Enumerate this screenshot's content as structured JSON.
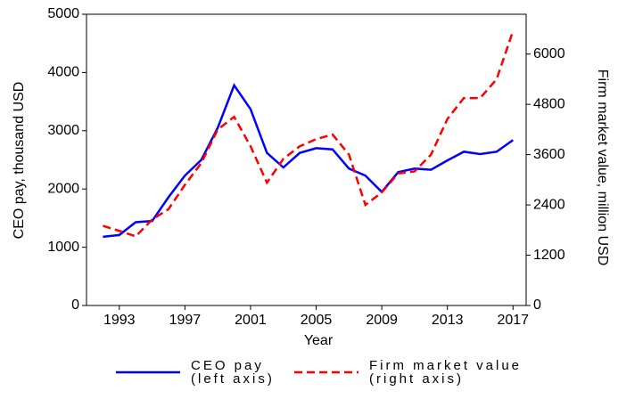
{
  "chart_data": {
    "type": "line",
    "x_label": "Year",
    "y_label": "CEO pay, thousand USD",
    "y2_label": "Firm market value, million USD",
    "x": [
      1992,
      1993,
      1994,
      1995,
      1996,
      1997,
      1998,
      1999,
      2000,
      2001,
      2002,
      2003,
      2004,
      2005,
      2006,
      2007,
      2008,
      2009,
      2010,
      2011,
      2012,
      2013,
      2014,
      2015,
      2016,
      2017
    ],
    "xlim": [
      1991,
      2017.8
    ],
    "xticks": [
      1993,
      1997,
      2001,
      2005,
      2009,
      2013,
      2017
    ],
    "ylim": [
      0,
      5000
    ],
    "yticks": [
      0,
      1000,
      2000,
      3000,
      4000,
      5000
    ],
    "y2lim": [
      0,
      6950
    ],
    "y2ticks": [
      0,
      1200,
      2400,
      3600,
      4800,
      6000
    ],
    "series": [
      {
        "name": "CEO pay\n(left axis)",
        "color": "#0000ff",
        "dash": "solid",
        "values": [
          1180,
          1210,
          1430,
          1450,
          1860,
          2230,
          2500,
          3050,
          3780,
          3370,
          2620,
          2370,
          2620,
          2700,
          2680,
          2350,
          2230,
          1950,
          2290,
          2350,
          2330,
          2490,
          2640,
          2600,
          2640,
          2840
        ]
      },
      {
        "name": "Firm market value\n(right axis)",
        "color": "#ff0000",
        "dash": "dashed",
        "axis": "y2",
        "values": [
          1900,
          1780,
          1650,
          2050,
          2300,
          2880,
          3400,
          4200,
          4500,
          3800,
          2930,
          3500,
          3800,
          3970,
          4080,
          3600,
          2400,
          2700,
          3150,
          3200,
          3600,
          4450,
          4950,
          4950,
          5400,
          6550
        ]
      }
    ]
  }
}
